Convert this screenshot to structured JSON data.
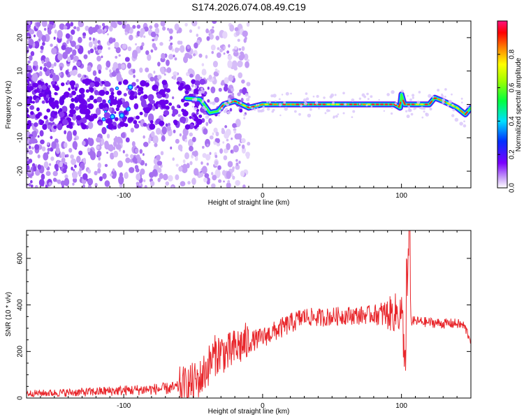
{
  "title": "S174.2026.074.08.49.C19",
  "chart_data": [
    {
      "type": "heatmap",
      "xlabel": "Height of straight line (km)",
      "ylabel": "Frequency (Hz)",
      "xlim": [
        -170,
        150
      ],
      "ylim": [
        -25,
        25
      ],
      "xticks": [
        -100,
        0,
        100
      ],
      "yticks": [
        -20,
        -10,
        0,
        10,
        20
      ],
      "colorbar": {
        "label": "Normalized spectral amplitude",
        "range": [
          0,
          1
        ],
        "ticks": [
          0.0,
          0.2,
          0.4,
          0.6,
          0.8
        ],
        "tick_labels": [
          "0.0",
          "0.2",
          "0.4",
          "0.6",
          "0.8"
        ],
        "colormap": "rainbow"
      },
      "ridge": [
        {
          "x": -60,
          "y": 2
        },
        {
          "x": -45,
          "y": 1.5
        },
        {
          "x": -38,
          "y": -2.5
        },
        {
          "x": -32,
          "y": -2
        },
        {
          "x": -28,
          "y": 0
        },
        {
          "x": -20,
          "y": 1
        },
        {
          "x": -10,
          "y": -1
        },
        {
          "x": 0,
          "y": 0
        },
        {
          "x": 20,
          "y": 0
        },
        {
          "x": 40,
          "y": 0
        },
        {
          "x": 60,
          "y": 0
        },
        {
          "x": 80,
          "y": 0
        },
        {
          "x": 95,
          "y": 0
        },
        {
          "x": 99,
          "y": -1
        },
        {
          "x": 100,
          "y": 3
        },
        {
          "x": 102,
          "y": 0
        },
        {
          "x": 120,
          "y": 0
        },
        {
          "x": 124,
          "y": 2
        },
        {
          "x": 130,
          "y": 1
        },
        {
          "x": 140,
          "y": -1
        },
        {
          "x": 146,
          "y": -3
        },
        {
          "x": 150,
          "y": -1
        }
      ]
    },
    {
      "type": "line",
      "xlabel": "Height of straight line (km)",
      "ylabel": "SNR (10 * v/v)",
      "xlim": [
        -170,
        150
      ],
      "ylim": [
        0,
        720
      ],
      "xticks": [
        -100,
        0,
        100
      ],
      "yticks": [
        0,
        200,
        400,
        600
      ],
      "color": "#e8262b",
      "series": [
        {
          "x": [
            -170,
            -150,
            -130,
            -110,
            -90,
            -70,
            -55,
            -45,
            -40,
            -35,
            -30,
            -25,
            -20,
            -15,
            -10,
            0,
            10,
            20,
            30,
            40,
            50,
            60,
            70,
            80,
            90,
            95,
            100,
            103,
            105,
            107,
            110,
            120,
            130,
            140,
            145,
            150
          ],
          "y": [
            20,
            22,
            25,
            30,
            35,
            40,
            50,
            80,
            130,
            180,
            200,
            190,
            210,
            230,
            240,
            260,
            290,
            320,
            350,
            345,
            350,
            355,
            355,
            360,
            360,
            365,
            370,
            150,
            640,
            330,
            330,
            325,
            320,
            320,
            310,
            250
          ]
        }
      ]
    }
  ]
}
